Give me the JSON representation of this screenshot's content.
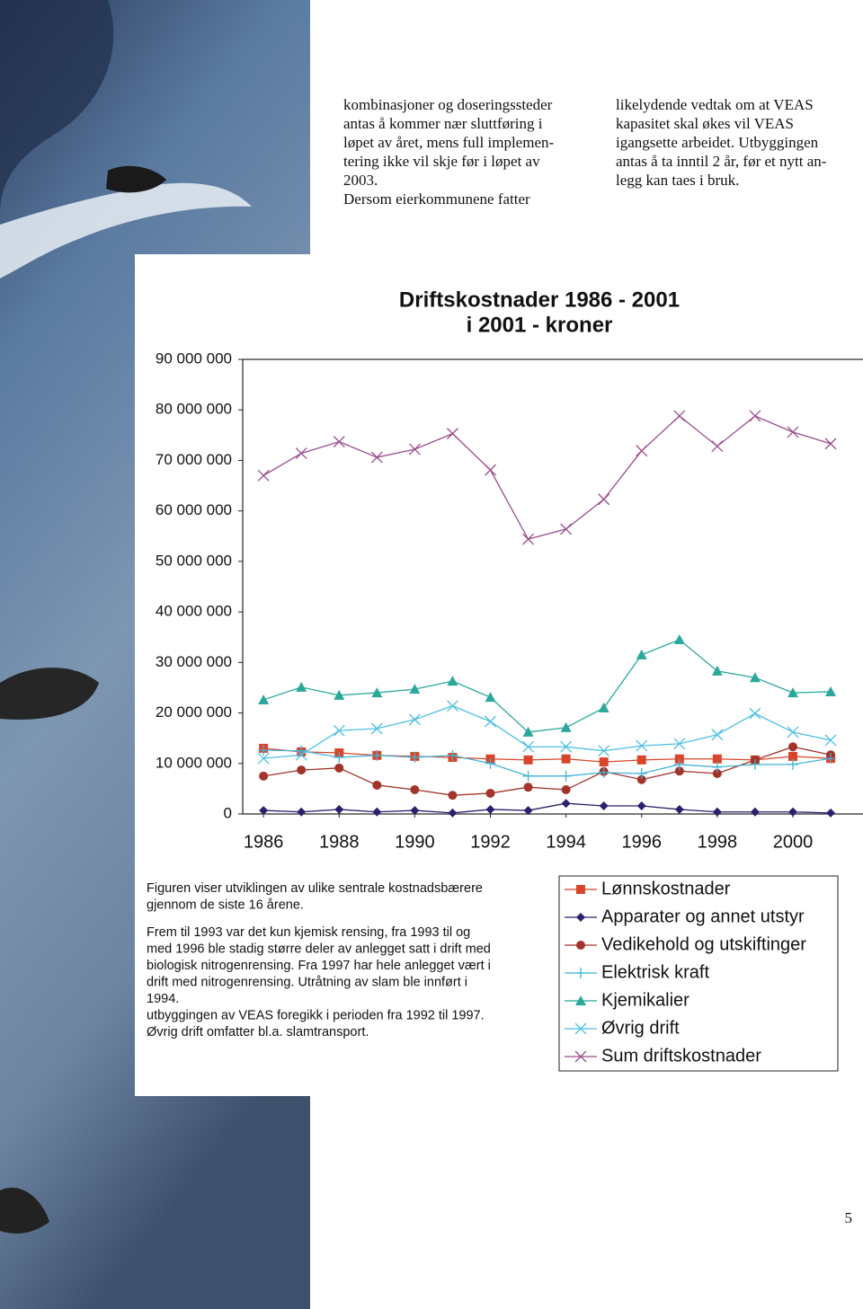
{
  "columns": [
    [
      "kombinasjoner og doseringssteder",
      "antas å kommer nær sluttføring i",
      "løpet av året, mens full implemen-",
      "tering ikke vil skje før i løpet av",
      "2003.",
      "Dersom eierkommunene fatter"
    ],
    [
      "likelydende vedtak om at VEAS",
      "kapasitet skal økes vil VEAS",
      "igangsette arbeidet. Utbyggingen",
      "antas å ta inntil 2 år, før et nytt an-",
      "legg kan taes i bruk."
    ]
  ],
  "caption": [
    [
      "Figuren viser utviklingen av ulike sentrale kostnadsbærere",
      "gjennom de siste 16 årene."
    ],
    [
      "Frem til 1993 var det kun kjemisk rensing, fra 1993 til og",
      "med 1996 ble stadig større deler av anlegget satt i drift med",
      "biologisk nitrogenrensing. Fra 1997 har hele anlegget vært i",
      "drift med nitrogenrensing. Utråtning av slam ble innført i",
      "1994.",
      "utbyggingen av VEAS foregikk i perioden fra 1992 til 1997.",
      "Øvrig drift omfatter bl.a. slamtransport."
    ]
  ],
  "page_number": "5",
  "chart_data": {
    "type": "line",
    "title": "Driftskostnader 1986 - 2001",
    "subtitle": "i 2001 - kroner",
    "x": [
      1986,
      1987,
      1988,
      1989,
      1990,
      1991,
      1992,
      1993,
      1994,
      1995,
      1996,
      1997,
      1998,
      1999,
      2000,
      2001
    ],
    "xlim": [
      1985.45,
      2002.14
    ],
    "xticks": [
      1986,
      1988,
      1990,
      1992,
      1994,
      1996,
      1998,
      2000
    ],
    "ylim": [
      0,
      90000000
    ],
    "yticks": [
      0,
      {
        "value": 10000000,
        "label": "10 000 000"
      },
      {
        "value": 20000000,
        "label": "20 000 000"
      },
      {
        "value": 30000000,
        "label": "30 000 000"
      },
      {
        "value": 40000000,
        "label": "40 000 000"
      },
      {
        "value": 50000000,
        "label": "50 000 000"
      },
      {
        "value": 60000000,
        "label": "60 000 000"
      },
      {
        "value": 70000000,
        "label": "70 000 000"
      },
      {
        "value": 80000000,
        "label": "80 000 000"
      },
      {
        "value": 90000000,
        "label": "90 000 000"
      }
    ],
    "legend": "bottom-right",
    "series": [
      {
        "name": "Lønnskostnader",
        "color": "#d9452b",
        "marker": "square",
        "values": [
          13000000,
          12300000,
          12100000,
          11600000,
          11400000,
          11200000,
          10900000,
          10700000,
          10900000,
          10300000,
          10700000,
          10900000,
          10900000,
          10700000,
          11400000,
          11000000
        ]
      },
      {
        "name": "Apparater og annet utstyr",
        "color": "#2e1f6e",
        "marker": "diamond",
        "values": [
          700000,
          400000,
          900000,
          400000,
          700000,
          200000,
          900000,
          700000,
          2100000,
          1600000,
          1600000,
          900000,
          400000,
          400000,
          400000,
          200000
        ]
      },
      {
        "name": "Vedikehold og  utskiftinger",
        "color": "#a3342b",
        "marker": "circle",
        "values": [
          7500000,
          8700000,
          9100000,
          5700000,
          4800000,
          3700000,
          4100000,
          5300000,
          4800000,
          8400000,
          6800000,
          8500000,
          8000000,
          10700000,
          13300000,
          11700000
        ]
      },
      {
        "name": "Elektrisk kraft",
        "color": "#3fb4d6",
        "marker": "plus",
        "values": [
          12600000,
          12500000,
          11200000,
          11600000,
          11200000,
          11600000,
          10000000,
          7500000,
          7500000,
          8200000,
          8000000,
          9800000,
          9300000,
          9800000,
          9800000,
          11000000
        ]
      },
      {
        "name": "Kjemikalier",
        "color": "#2aa89c",
        "marker": "triangle",
        "values": [
          22600000,
          25100000,
          23500000,
          24000000,
          24700000,
          26300000,
          23100000,
          16200000,
          17100000,
          21000000,
          31500000,
          34500000,
          28300000,
          27000000,
          24000000,
          24200000
        ]
      },
      {
        "name": "Øvrig drift",
        "color": "#4cc0e2",
        "marker": "x",
        "values": [
          11000000,
          11700000,
          16500000,
          16900000,
          18700000,
          21400000,
          18300000,
          13300000,
          13300000,
          12500000,
          13500000,
          13900000,
          15700000,
          19900000,
          16200000,
          14600000
        ]
      },
      {
        "name": "Sum driftskostnader",
        "color": "#9b4c8c",
        "marker": "x",
        "values": [
          67000000,
          71400000,
          73700000,
          70600000,
          72200000,
          75300000,
          68100000,
          54400000,
          56400000,
          62300000,
          71900000,
          78800000,
          72800000,
          78800000,
          75600000,
          73300000
        ]
      }
    ]
  }
}
